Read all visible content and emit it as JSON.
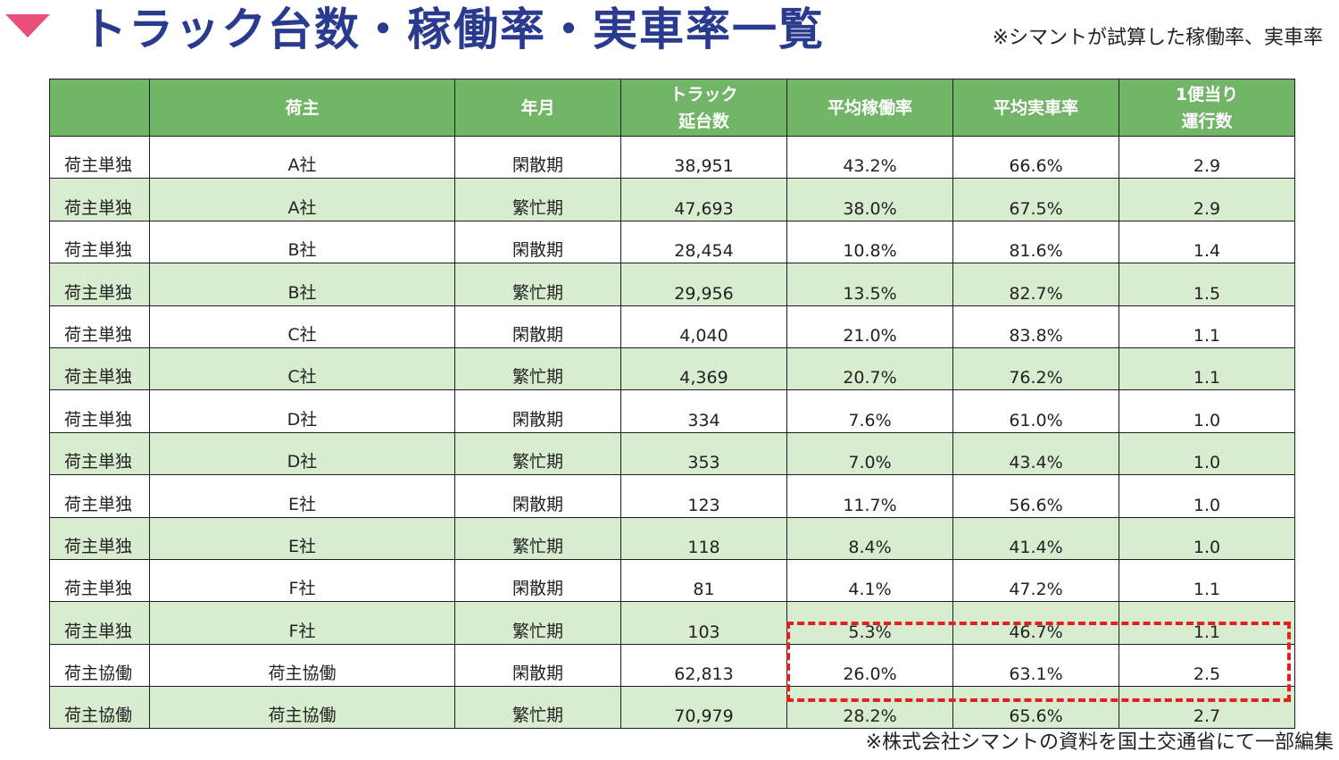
{
  "header": {
    "title": "トラック台数・稼働率・実車率一覧",
    "note": "※シマントが試算した稼働率、実車率"
  },
  "table": {
    "headers": [
      "",
      "荷主",
      "年月",
      "トラック\n延台数",
      "平均稼働率",
      "平均実車率",
      "1便当り\n運行数"
    ],
    "rows": [
      [
        "荷主単独",
        "A社",
        "閑散期",
        "38,951",
        "43.2%",
        "66.6%",
        "2.9"
      ],
      [
        "荷主単独",
        "A社",
        "繁忙期",
        "47,693",
        "38.0%",
        "67.5%",
        "2.9"
      ],
      [
        "荷主単独",
        "B社",
        "閑散期",
        "28,454",
        "10.8%",
        "81.6%",
        "1.4"
      ],
      [
        "荷主単独",
        "B社",
        "繁忙期",
        "29,956",
        "13.5%",
        "82.7%",
        "1.5"
      ],
      [
        "荷主単独",
        "C社",
        "閑散期",
        "4,040",
        "21.0%",
        "83.8%",
        "1.1"
      ],
      [
        "荷主単独",
        "C社",
        "繁忙期",
        "4,369",
        "20.7%",
        "76.2%",
        "1.1"
      ],
      [
        "荷主単独",
        "D社",
        "閑散期",
        "334",
        "7.6%",
        "61.0%",
        "1.0"
      ],
      [
        "荷主単独",
        "D社",
        "繁忙期",
        "353",
        "7.0%",
        "43.4%",
        "1.0"
      ],
      [
        "荷主単独",
        "E社",
        "閑散期",
        "123",
        "11.7%",
        "56.6%",
        "1.0"
      ],
      [
        "荷主単独",
        "E社",
        "繁忙期",
        "118",
        "8.4%",
        "41.4%",
        "1.0"
      ],
      [
        "荷主単独",
        "F社",
        "閑散期",
        "81",
        "4.1%",
        "47.2%",
        "1.1"
      ],
      [
        "荷主単独",
        "F社",
        "繁忙期",
        "103",
        "5.3%",
        "46.7%",
        "1.1"
      ],
      [
        "荷主協働",
        "荷主協働",
        "閑散期",
        "62,813",
        "26.0%",
        "63.1%",
        "2.5"
      ],
      [
        "荷主協働",
        "荷主協働",
        "繁忙期",
        "70,979",
        "28.2%",
        "65.6%",
        "2.7"
      ]
    ]
  },
  "footer": {
    "note": "※株式会社シマントの資料を国土交通省にて一部編集"
  },
  "colors": {
    "title": "#2a3a8f",
    "marker": "#e8507a",
    "header_bg": "#72b468",
    "alt_row_bg": "#d8ecd0",
    "highlight_border": "#e41f1f"
  }
}
